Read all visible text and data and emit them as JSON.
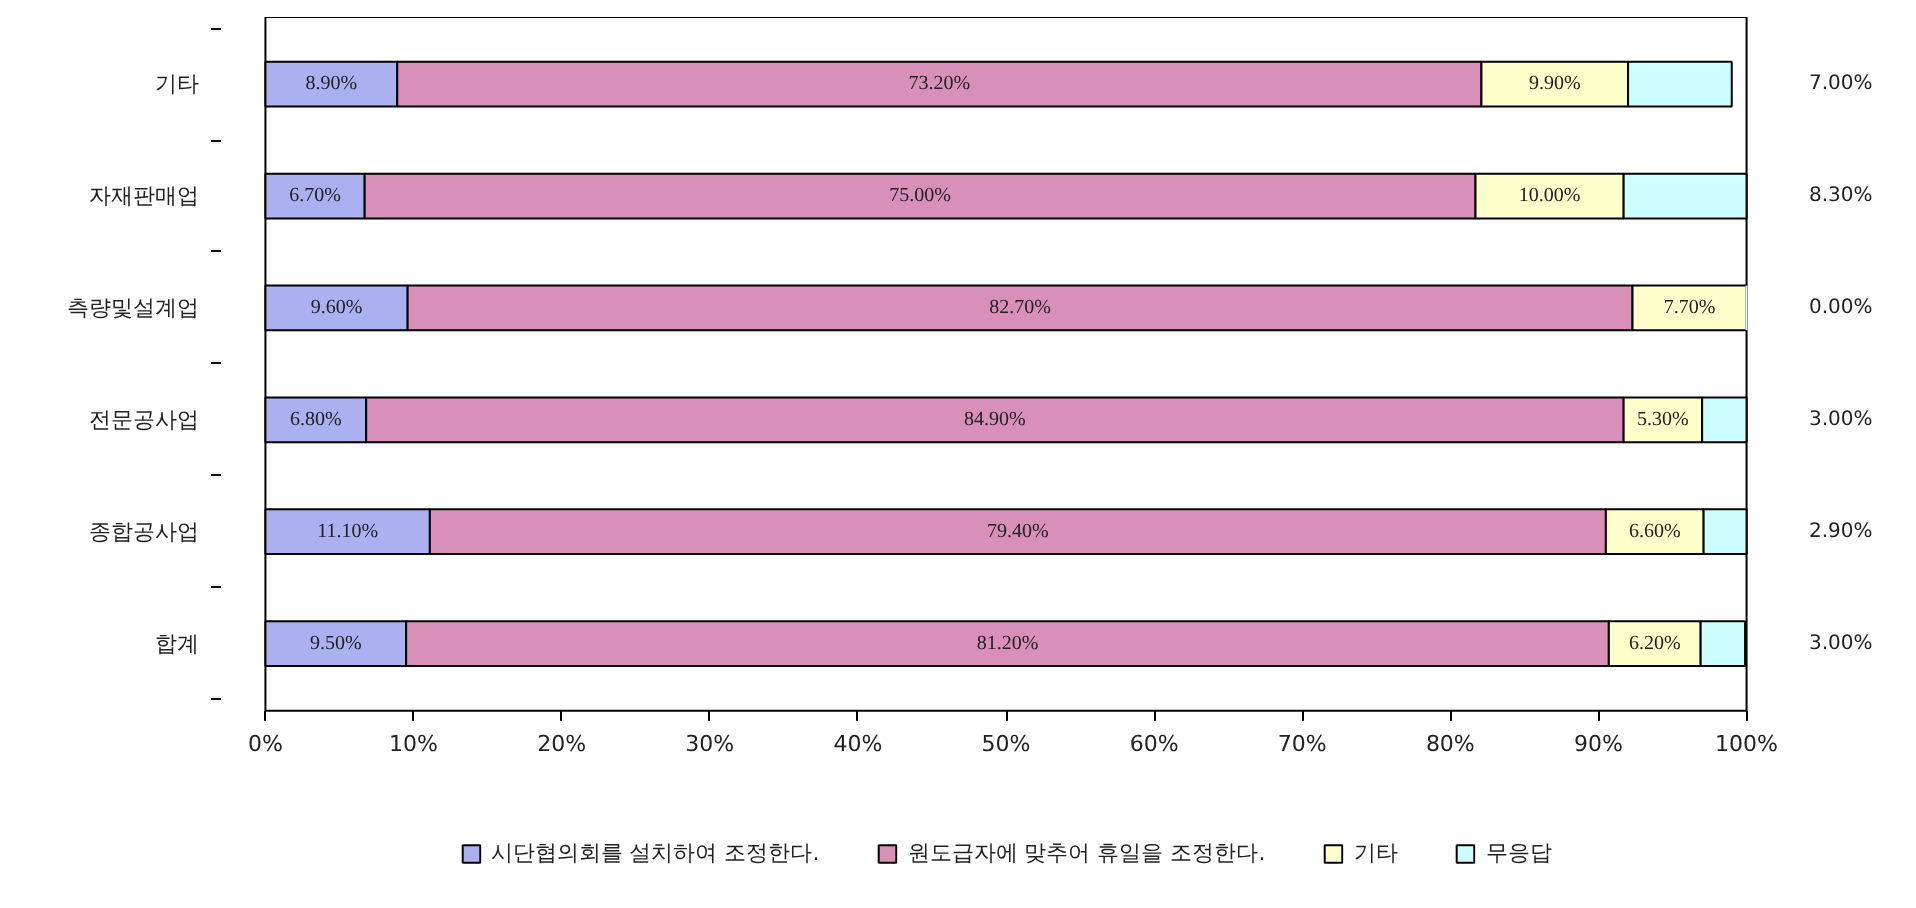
{
  "chart_data": {
    "type": "bar",
    "orientation": "horizontal",
    "stacked": true,
    "categories": [
      "기타",
      "자재판매업",
      "측량및설계업",
      "전문공사업",
      "종합공사업",
      "합계"
    ],
    "series": [
      {
        "name": "시단협의회를 설치하여 조정한다.",
        "color": "#aab0f0",
        "values": [
          8.9,
          6.7,
          9.6,
          6.8,
          11.1,
          9.5
        ],
        "value_labels": [
          "8.90%",
          "6.70%",
          "9.60%",
          "6.80%",
          "11.10%",
          "9.50%"
        ]
      },
      {
        "name": "원도급자에 맞추어 휴일을 조정한다.",
        "color": "#d890b8",
        "values": [
          73.2,
          75.0,
          82.7,
          84.9,
          79.4,
          81.2
        ],
        "value_labels": [
          "73.20%",
          "75.00%",
          "82.70%",
          "84.90%",
          "79.40%",
          "81.20%"
        ]
      },
      {
        "name": "기타",
        "color": "#ffffcc",
        "values": [
          9.9,
          10.0,
          7.7,
          5.3,
          6.6,
          6.2
        ],
        "value_labels": [
          "9.90%",
          "10.00%",
          "7.70%",
          "5.30%",
          "6.60%",
          "6.20%"
        ]
      },
      {
        "name": "무응답",
        "color": "#ccffff",
        "values": [
          7.0,
          8.3,
          0.0,
          3.0,
          2.9,
          3.0
        ],
        "value_labels": [
          "7.00%",
          "8.30%",
          "0.00%",
          "3.00%",
          "2.90%",
          "3.00%"
        ]
      }
    ],
    "xlim": [
      0,
      100
    ],
    "xticks": [
      {
        "value": 0,
        "label": "0%"
      },
      {
        "value": 10,
        "label": "10%"
      },
      {
        "value": 20,
        "label": "20%"
      },
      {
        "value": 30,
        "label": "30%"
      },
      {
        "value": 40,
        "label": "40%"
      },
      {
        "value": 50,
        "label": "50%"
      },
      {
        "value": 60,
        "label": "60%"
      },
      {
        "value": 70,
        "label": "70%"
      },
      {
        "value": 80,
        "label": "80%"
      },
      {
        "value": 90,
        "label": "90%"
      },
      {
        "value": 100,
        "label": "100%"
      }
    ],
    "grid": false,
    "legend": "bottom"
  }
}
